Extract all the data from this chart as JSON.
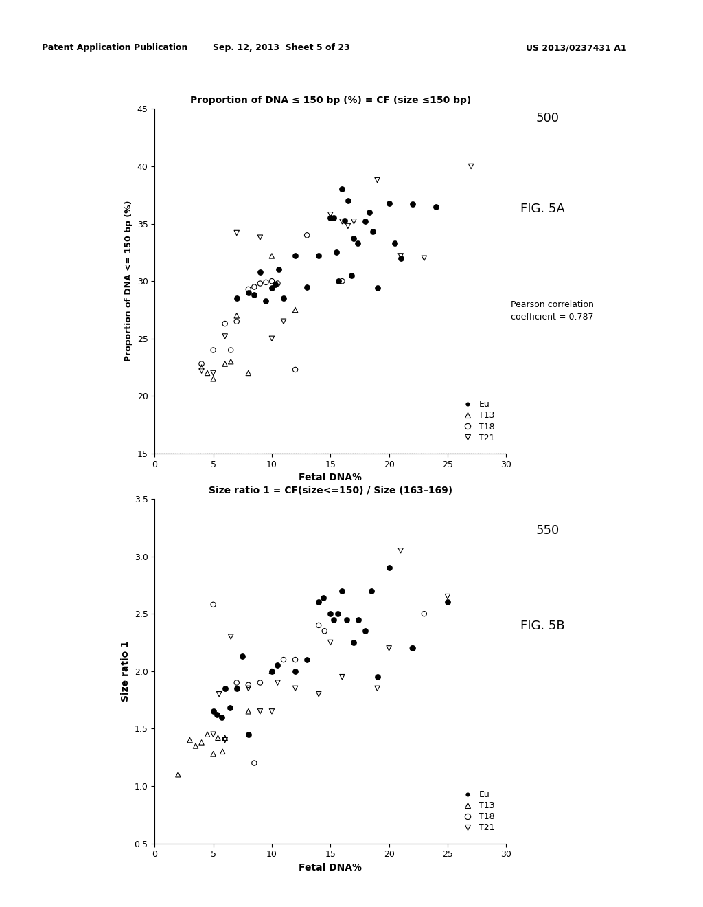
{
  "header_left": "Patent Application Publication",
  "header_center": "Sep. 12, 2013  Sheet 5 of 23",
  "header_right": "US 2013/0237431 A1",
  "fig5a": {
    "title": "Proportion of DNA ≤ 150 bp (%) = CF (size ≤150 bp)",
    "xlabel": "Fetal DNA%",
    "ylabel": "Proportion of DNA <= 150 bp (%)",
    "xlim": [
      0,
      30
    ],
    "ylim": [
      15,
      45
    ],
    "xticks": [
      0,
      5,
      10,
      15,
      20,
      25,
      30
    ],
    "yticks": [
      15,
      20,
      25,
      30,
      35,
      40,
      45
    ],
    "label": "500",
    "fig_label": "FIG. 5A",
    "pearson": "Pearson correlation\ncoefficient = 0.787",
    "Eu_x": [
      7,
      8,
      8.5,
      9,
      9.5,
      10,
      10.3,
      10.6,
      11,
      12,
      13,
      14,
      15,
      15.3,
      15.5,
      15.7,
      16,
      16.2,
      16.5,
      16.8,
      17,
      17.3,
      18,
      18.3,
      18.6,
      19,
      20,
      20.5,
      21,
      22,
      24
    ],
    "Eu_y": [
      28.5,
      29.0,
      28.8,
      30.8,
      28.3,
      29.4,
      29.7,
      31.0,
      28.5,
      32.2,
      29.5,
      32.2,
      35.5,
      35.5,
      32.5,
      30.0,
      38.0,
      35.3,
      37.0,
      30.5,
      33.7,
      33.3,
      35.2,
      36.0,
      34.3,
      29.4,
      36.8,
      33.3,
      32.0,
      36.7,
      36.5
    ],
    "T13_x": [
      4,
      4.5,
      5,
      6,
      6.5,
      7,
      8,
      10,
      12
    ],
    "T13_y": [
      22.5,
      22.0,
      21.5,
      22.8,
      23.0,
      27.0,
      22.0,
      32.2,
      27.5
    ],
    "T18_x": [
      4,
      5,
      6,
      6.5,
      7,
      8,
      8.5,
      9,
      9.5,
      10,
      10.5,
      12,
      13,
      16
    ],
    "T18_y": [
      22.8,
      24.0,
      26.3,
      24.0,
      26.5,
      29.3,
      29.5,
      29.8,
      29.9,
      30.0,
      29.8,
      22.3,
      34.0,
      30.0
    ],
    "T21_x": [
      4,
      5,
      6,
      7,
      9,
      10,
      11,
      15,
      16,
      16.5,
      17,
      19,
      21,
      23,
      27
    ],
    "T21_y": [
      22.2,
      22.0,
      25.2,
      34.2,
      33.8,
      25.0,
      26.5,
      35.8,
      35.2,
      34.8,
      35.2,
      38.8,
      32.2,
      32.0,
      40.0
    ]
  },
  "fig5b": {
    "title": "Size ratio 1 = CF(size<=150) / Size (163–169)",
    "xlabel": "Fetal DNA%",
    "ylabel": "Size ratio 1",
    "xlim": [
      0,
      30
    ],
    "ylim": [
      0.5,
      3.5
    ],
    "xticks": [
      0,
      5,
      10,
      15,
      20,
      25,
      30
    ],
    "yticks": [
      0.5,
      1.0,
      1.5,
      2.0,
      2.5,
      3.0,
      3.5
    ],
    "label": "550",
    "fig_label": "FIG. 5B",
    "Eu_x": [
      5,
      5.3,
      5.7,
      6,
      6.4,
      7,
      7.5,
      8,
      10,
      10.5,
      12,
      13,
      14,
      14.4,
      15,
      15.3,
      15.6,
      16,
      16.4,
      17,
      17.4,
      18,
      18.5,
      19,
      20,
      22,
      25
    ],
    "Eu_y": [
      1.65,
      1.62,
      1.6,
      1.85,
      1.68,
      1.85,
      2.13,
      1.45,
      2.0,
      2.05,
      2.0,
      2.1,
      2.6,
      2.64,
      2.5,
      2.45,
      2.5,
      2.7,
      2.45,
      2.25,
      2.45,
      2.35,
      2.7,
      1.95,
      2.9,
      2.2,
      2.6
    ],
    "T13_x": [
      2,
      3,
      3.5,
      4,
      4.5,
      5,
      5.4,
      5.8,
      6,
      8,
      10
    ],
    "T13_y": [
      1.1,
      1.4,
      1.35,
      1.38,
      1.45,
      1.28,
      1.42,
      1.3,
      1.42,
      1.65,
      2.0
    ],
    "T18_x": [
      5,
      7,
      8,
      8.5,
      9,
      11,
      12,
      14,
      14.5,
      22,
      23
    ],
    "T18_y": [
      2.58,
      1.9,
      1.88,
      1.2,
      1.9,
      2.1,
      2.1,
      2.4,
      2.35,
      2.2,
      2.5
    ],
    "T21_x": [
      5,
      5.5,
      6,
      6.5,
      8,
      9,
      10,
      10.5,
      12,
      14,
      15,
      16,
      19,
      20,
      21,
      25
    ],
    "T21_y": [
      1.45,
      1.8,
      1.4,
      2.3,
      1.85,
      1.65,
      1.65,
      1.9,
      1.85,
      1.8,
      2.25,
      1.95,
      1.85,
      2.2,
      3.05,
      2.65
    ]
  },
  "bg_color": "#ffffff",
  "marker_size": 28,
  "lw": 0.8
}
